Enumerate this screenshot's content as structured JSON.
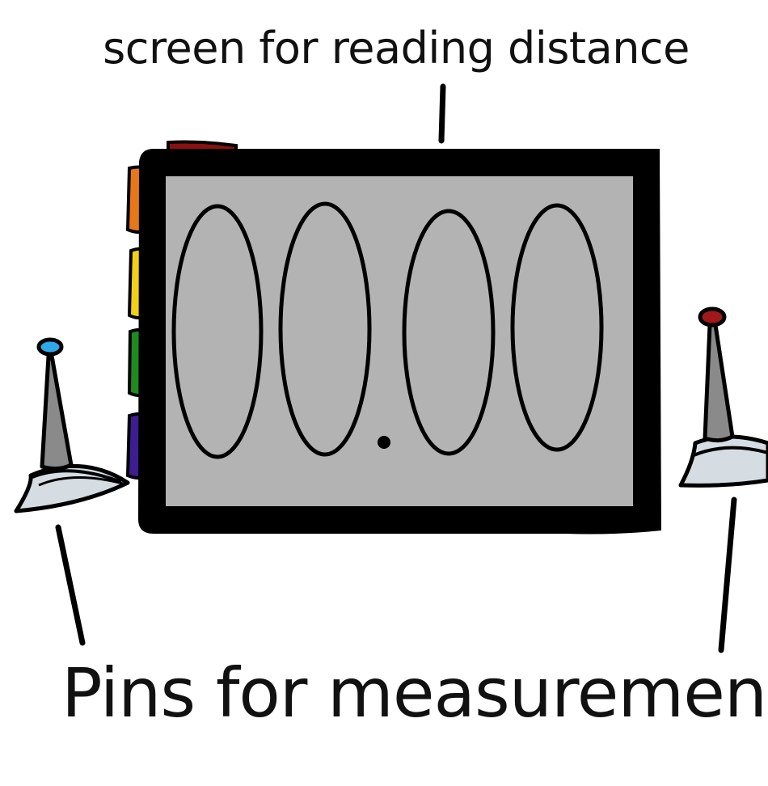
{
  "labels": {
    "screen_label": "screen for reading distance",
    "pins_label": "Pins for measurement"
  },
  "display": {
    "glyphs": [
      "0",
      "0",
      ".",
      "0",
      "0"
    ]
  },
  "colors": {
    "outline": "#000000",
    "screen": "#b3b3b3",
    "pin_body": "#8a8a8a",
    "pin_base": "#d5dde3",
    "left_pin_tip": "#2ea8e8",
    "right_pin_tip": "#a01818",
    "side_buttons": [
      "#8b1111",
      "#e87717",
      "#f2cf18",
      "#1f8a1f",
      "#3d1d8f"
    ]
  },
  "icons": [
    "left-measurement-pin-icon",
    "right-measurement-pin-icon",
    "side-button-icon"
  ]
}
